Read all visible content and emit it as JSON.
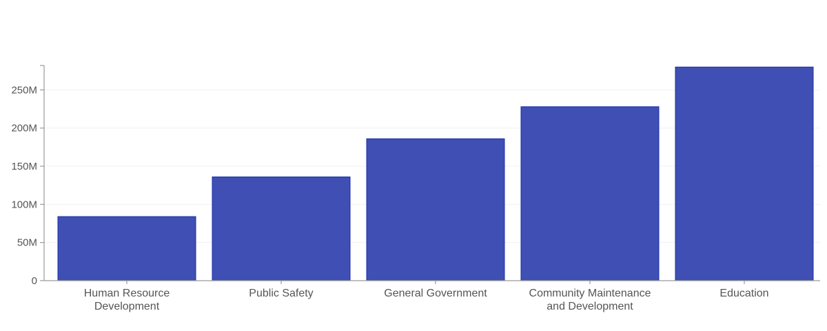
{
  "chart_data": {
    "type": "bar",
    "title": "",
    "xlabel": "",
    "ylabel": "",
    "categories": [
      [
        "Human Resource",
        "Development"
      ],
      [
        "Public Safety"
      ],
      [
        "General Government"
      ],
      [
        "Community Maintenance",
        "and Development"
      ],
      [
        "Education"
      ]
    ],
    "values": [
      84000000,
      136000000,
      186000000,
      228000000,
      280000000
    ],
    "ylim": [
      0,
      282000000
    ],
    "yticks": [
      0,
      50000000,
      100000000,
      150000000,
      200000000,
      250000000
    ],
    "ytick_labels": [
      "0",
      "50M",
      "100M",
      "150M",
      "200M",
      "250M"
    ],
    "grid": true,
    "legend": "none",
    "colors": {
      "bar": "#3f4fb3"
    }
  }
}
